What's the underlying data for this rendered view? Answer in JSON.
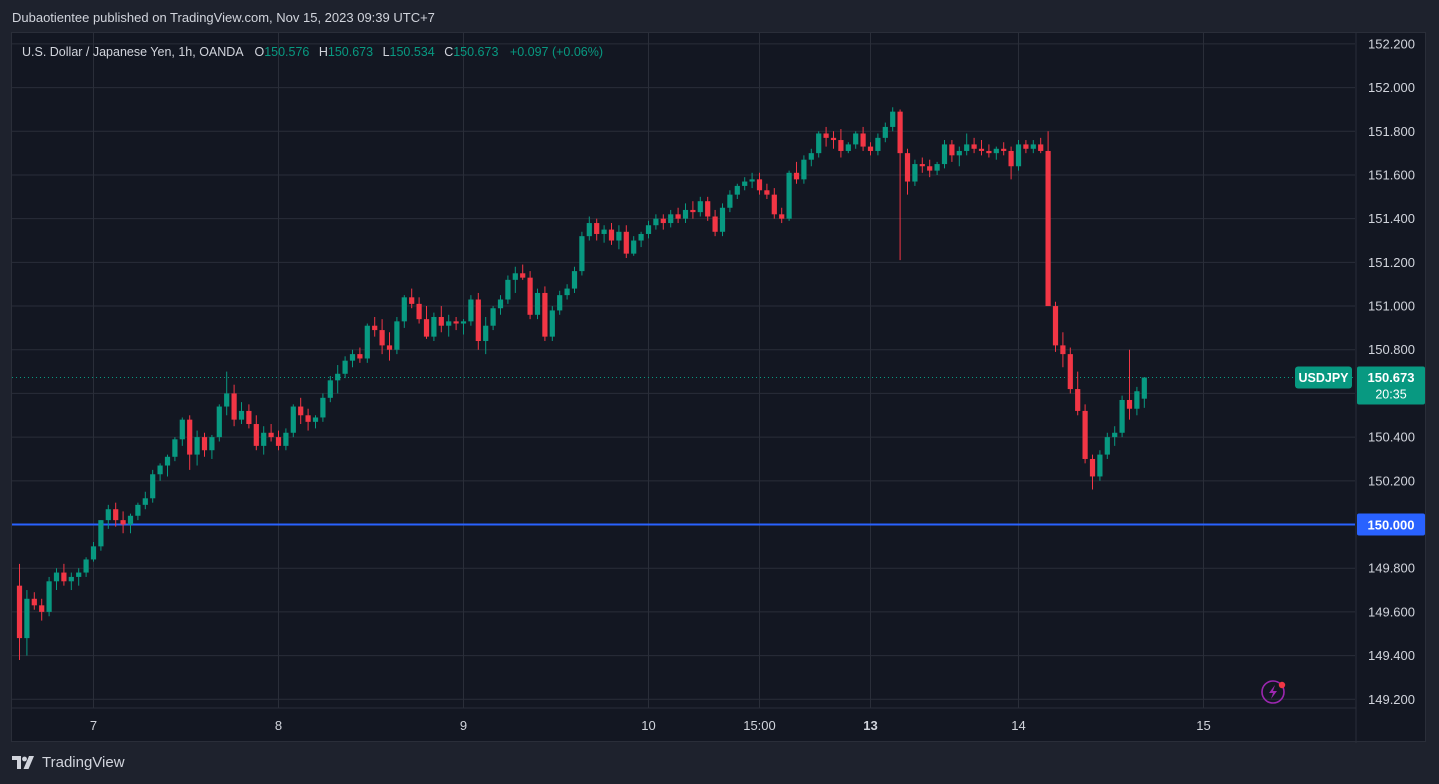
{
  "header": {
    "publisher": "Dubaotientee published on TradingView.com, Nov 15, 2023 09:39 UTC+7"
  },
  "legend": {
    "symbol": "U.S. Dollar / Japanese Yen, 1h, OANDA",
    "o_label": "O",
    "o_value": "150.576",
    "h_label": "H",
    "h_value": "150.673",
    "l_label": "L",
    "l_value": "150.534",
    "c_label": "C",
    "c_value": "150.673",
    "change": "+0.097 (+0.06%)"
  },
  "footer": {
    "brand": "TradingView"
  },
  "colors": {
    "up": "#089981",
    "down": "#f23645",
    "grid": "#2a2e39",
    "hline": "#2962ff",
    "text": "#d1d4dc",
    "bg": "#131722"
  },
  "chart_data": {
    "type": "candlestick",
    "symbol": "USDJPY",
    "interval": "1h",
    "ylim": [
      149.16,
      152.25
    ],
    "y_ticks": [
      "152.200",
      "152.000",
      "151.800",
      "151.600",
      "151.400",
      "151.200",
      "151.000",
      "150.800",
      "150.600",
      "150.400",
      "150.200",
      "150.000",
      "149.800",
      "149.600",
      "149.400",
      "149.200"
    ],
    "x_ticks": [
      {
        "label": "7",
        "index": 10,
        "bold": false
      },
      {
        "label": "8",
        "index": 35,
        "bold": false
      },
      {
        "label": "9",
        "index": 60,
        "bold": false
      },
      {
        "label": "10",
        "index": 85,
        "bold": false
      },
      {
        "label": "15:00",
        "index": 100,
        "bold": false
      },
      {
        "label": "13",
        "index": 115,
        "bold": true
      },
      {
        "label": "14",
        "index": 135,
        "bold": false
      },
      {
        "label": "15",
        "index": 160,
        "bold": false
      }
    ],
    "horizontal_line": {
      "value": 150.0,
      "label": "150.000"
    },
    "last_price": {
      "value": 150.673,
      "label": "150.673",
      "countdown": "20:35",
      "symbol_label": "USDJPY"
    },
    "candles": [
      [
        149.72,
        149.82,
        149.38,
        149.48
      ],
      [
        149.48,
        149.7,
        149.4,
        149.66
      ],
      [
        149.66,
        149.69,
        149.61,
        149.63
      ],
      [
        149.63,
        149.66,
        149.56,
        149.6
      ],
      [
        149.6,
        149.76,
        149.58,
        149.74
      ],
      [
        149.74,
        149.8,
        149.7,
        149.78
      ],
      [
        149.78,
        149.82,
        149.72,
        149.74
      ],
      [
        149.74,
        149.78,
        149.7,
        149.76
      ],
      [
        149.76,
        149.8,
        149.72,
        149.78
      ],
      [
        149.78,
        149.85,
        149.76,
        149.84
      ],
      [
        149.84,
        149.92,
        149.83,
        149.9
      ],
      [
        149.9,
        150.02,
        149.88,
        150.02
      ],
      [
        150.02,
        150.09,
        149.98,
        150.07
      ],
      [
        150.07,
        150.1,
        149.99,
        150.02
      ],
      [
        150.02,
        150.06,
        149.96,
        150.0
      ],
      [
        150.0,
        150.05,
        149.96,
        150.04
      ],
      [
        150.04,
        150.1,
        150.02,
        150.09
      ],
      [
        150.09,
        150.15,
        150.07,
        150.12
      ],
      [
        150.12,
        150.25,
        150.1,
        150.23
      ],
      [
        150.23,
        150.28,
        150.2,
        150.27
      ],
      [
        150.27,
        150.32,
        150.22,
        150.31
      ],
      [
        150.31,
        150.4,
        150.29,
        150.39
      ],
      [
        150.39,
        150.49,
        150.36,
        150.48
      ],
      [
        150.48,
        150.5,
        150.25,
        150.32
      ],
      [
        150.32,
        150.43,
        150.27,
        150.4
      ],
      [
        150.4,
        150.42,
        150.31,
        150.34
      ],
      [
        150.34,
        150.41,
        150.3,
        150.4
      ],
      [
        150.4,
        150.55,
        150.38,
        150.54
      ],
      [
        150.54,
        150.7,
        150.5,
        150.6
      ],
      [
        150.6,
        150.64,
        150.45,
        150.48
      ],
      [
        150.48,
        150.56,
        150.46,
        150.52
      ],
      [
        150.52,
        150.55,
        150.44,
        150.46
      ],
      [
        150.46,
        150.5,
        150.34,
        150.36
      ],
      [
        150.36,
        150.45,
        150.32,
        150.42
      ],
      [
        150.42,
        150.46,
        150.38,
        150.4
      ],
      [
        150.4,
        150.43,
        150.34,
        150.36
      ],
      [
        150.36,
        150.44,
        150.34,
        150.42
      ],
      [
        150.42,
        150.55,
        150.4,
        150.54
      ],
      [
        150.54,
        150.58,
        150.46,
        150.5
      ],
      [
        150.5,
        150.53,
        150.43,
        150.47
      ],
      [
        150.47,
        150.5,
        150.44,
        150.49
      ],
      [
        150.49,
        150.6,
        150.47,
        150.58
      ],
      [
        150.58,
        150.68,
        150.56,
        150.66
      ],
      [
        150.66,
        150.73,
        150.6,
        150.69
      ],
      [
        150.69,
        150.77,
        150.67,
        150.75
      ],
      [
        150.75,
        150.8,
        150.72,
        150.78
      ],
      [
        150.78,
        150.81,
        150.74,
        150.76
      ],
      [
        150.76,
        150.92,
        150.74,
        150.91
      ],
      [
        150.91,
        150.95,
        150.86,
        150.89
      ],
      [
        150.89,
        150.94,
        150.78,
        150.82
      ],
      [
        150.82,
        150.88,
        150.75,
        150.8
      ],
      [
        150.8,
        150.95,
        150.78,
        150.93
      ],
      [
        150.93,
        151.05,
        150.9,
        151.04
      ],
      [
        151.04,
        151.08,
        150.99,
        151.01
      ],
      [
        151.01,
        151.04,
        150.92,
        150.94
      ],
      [
        150.94,
        151.0,
        150.85,
        150.86
      ],
      [
        150.86,
        150.97,
        150.84,
        150.95
      ],
      [
        150.95,
        151.0,
        150.88,
        150.91
      ],
      [
        150.91,
        150.96,
        150.86,
        150.93
      ],
      [
        150.93,
        150.95,
        150.89,
        150.92
      ],
      [
        150.92,
        150.94,
        150.87,
        150.93
      ],
      [
        150.93,
        151.05,
        150.91,
        151.03
      ],
      [
        151.03,
        151.06,
        150.8,
        150.84
      ],
      [
        150.84,
        150.95,
        150.78,
        150.91
      ],
      [
        150.91,
        151.0,
        150.89,
        150.99
      ],
      [
        150.99,
        151.05,
        150.96,
        151.03
      ],
      [
        151.03,
        151.14,
        151.01,
        151.12
      ],
      [
        151.12,
        151.18,
        151.06,
        151.15
      ],
      [
        151.15,
        151.19,
        151.12,
        151.13
      ],
      [
        151.13,
        151.16,
        150.94,
        150.96
      ],
      [
        150.96,
        151.08,
        150.94,
        151.06
      ],
      [
        151.06,
        151.09,
        150.84,
        150.86
      ],
      [
        150.86,
        151.0,
        150.84,
        150.98
      ],
      [
        150.98,
        151.07,
        150.96,
        151.05
      ],
      [
        151.05,
        151.1,
        151.03,
        151.08
      ],
      [
        151.08,
        151.18,
        151.06,
        151.16
      ],
      [
        151.16,
        151.34,
        151.14,
        151.32
      ],
      [
        151.32,
        151.41,
        151.3,
        151.38
      ],
      [
        151.38,
        151.4,
        151.3,
        151.33
      ],
      [
        151.33,
        151.37,
        151.29,
        151.35
      ],
      [
        151.35,
        151.38,
        151.28,
        151.3
      ],
      [
        151.3,
        151.37,
        151.26,
        151.34
      ],
      [
        151.34,
        151.37,
        151.22,
        151.24
      ],
      [
        151.24,
        151.32,
        151.23,
        151.3
      ],
      [
        151.3,
        151.34,
        151.27,
        151.33
      ],
      [
        151.33,
        151.39,
        151.31,
        151.37
      ],
      [
        151.37,
        151.42,
        151.35,
        151.4
      ],
      [
        151.4,
        151.42,
        151.35,
        151.38
      ],
      [
        151.38,
        151.44,
        151.36,
        151.42
      ],
      [
        151.42,
        151.45,
        151.38,
        151.4
      ],
      [
        151.4,
        151.47,
        151.38,
        151.44
      ],
      [
        151.44,
        151.48,
        151.4,
        151.43
      ],
      [
        151.43,
        151.5,
        151.41,
        151.48
      ],
      [
        151.48,
        151.5,
        151.39,
        151.41
      ],
      [
        151.41,
        151.44,
        151.32,
        151.34
      ],
      [
        151.34,
        151.47,
        151.32,
        151.45
      ],
      [
        151.45,
        151.53,
        151.43,
        151.51
      ],
      [
        151.51,
        151.56,
        151.49,
        151.55
      ],
      [
        151.55,
        151.59,
        151.53,
        151.57
      ],
      [
        151.57,
        151.61,
        151.54,
        151.58
      ],
      [
        151.58,
        151.61,
        151.51,
        151.53
      ],
      [
        151.53,
        151.56,
        151.49,
        151.51
      ],
      [
        151.51,
        151.54,
        151.4,
        151.42
      ],
      [
        151.42,
        151.45,
        151.38,
        151.4
      ],
      [
        151.4,
        151.62,
        151.39,
        151.61
      ],
      [
        151.61,
        151.66,
        151.56,
        151.58
      ],
      [
        151.58,
        151.69,
        151.56,
        151.67
      ],
      [
        151.67,
        151.72,
        151.64,
        151.7
      ],
      [
        151.7,
        151.8,
        151.68,
        151.79
      ],
      [
        151.79,
        151.82,
        151.73,
        151.77
      ],
      [
        151.77,
        151.8,
        151.72,
        151.76
      ],
      [
        151.76,
        151.81,
        151.68,
        151.71
      ],
      [
        151.71,
        151.75,
        151.7,
        151.74
      ],
      [
        151.74,
        151.8,
        151.72,
        151.79
      ],
      [
        151.79,
        151.82,
        151.71,
        151.73
      ],
      [
        151.73,
        151.75,
        151.69,
        151.71
      ],
      [
        151.71,
        151.79,
        151.69,
        151.77
      ],
      [
        151.77,
        151.84,
        151.75,
        151.82
      ],
      [
        151.82,
        151.91,
        151.8,
        151.89
      ],
      [
        151.89,
        151.9,
        151.21,
        151.7
      ],
      [
        151.7,
        151.72,
        151.51,
        151.57
      ],
      [
        151.57,
        151.67,
        151.55,
        151.65
      ],
      [
        151.65,
        151.68,
        151.61,
        151.64
      ],
      [
        151.64,
        151.67,
        151.59,
        151.62
      ],
      [
        151.62,
        151.66,
        151.6,
        151.65
      ],
      [
        151.65,
        151.76,
        151.63,
        151.74
      ],
      [
        151.74,
        151.76,
        151.66,
        151.69
      ],
      [
        151.69,
        151.73,
        151.64,
        151.71
      ],
      [
        151.71,
        151.79,
        151.69,
        151.74
      ],
      [
        151.74,
        151.77,
        151.7,
        151.72
      ],
      [
        151.72,
        151.76,
        151.69,
        151.71
      ],
      [
        151.71,
        151.74,
        151.68,
        151.7
      ],
      [
        151.7,
        151.73,
        151.67,
        151.72
      ],
      [
        151.72,
        151.75,
        151.69,
        151.71
      ],
      [
        151.71,
        151.73,
        151.58,
        151.64
      ],
      [
        151.64,
        151.76,
        151.62,
        151.74
      ],
      [
        151.74,
        151.76,
        151.7,
        151.72
      ],
      [
        151.72,
        151.76,
        151.7,
        151.74
      ],
      [
        151.74,
        151.77,
        151.7,
        151.71
      ],
      [
        151.71,
        151.8,
        151.01,
        151.0
      ],
      [
        151.0,
        151.02,
        150.79,
        150.82
      ],
      [
        150.82,
        150.88,
        150.72,
        150.78
      ],
      [
        150.78,
        150.81,
        150.6,
        150.62
      ],
      [
        150.62,
        150.7,
        150.5,
        150.52
      ],
      [
        150.52,
        150.55,
        150.28,
        150.3
      ],
      [
        150.3,
        150.32,
        150.16,
        150.22
      ],
      [
        150.22,
        150.34,
        150.2,
        150.32
      ],
      [
        150.32,
        150.42,
        150.3,
        150.4
      ],
      [
        150.4,
        150.45,
        150.36,
        150.42
      ],
      [
        150.42,
        150.59,
        150.4,
        150.57
      ],
      [
        150.57,
        150.8,
        150.48,
        150.53
      ],
      [
        150.53,
        150.63,
        150.5,
        150.61
      ],
      [
        150.576,
        150.673,
        150.534,
        150.673
      ]
    ]
  }
}
